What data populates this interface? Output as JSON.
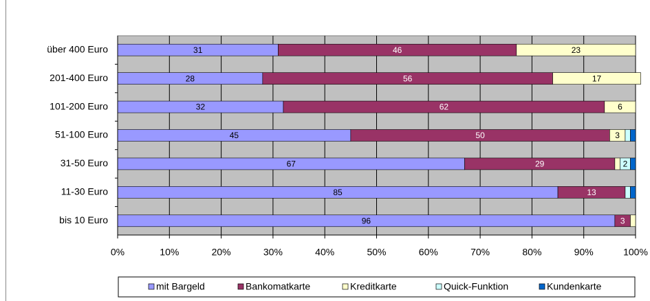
{
  "chart_data": {
    "type": "stacked-bar-horizontal",
    "categories": [
      "über 400 Euro",
      "201-400 Euro",
      "101-200 Euro",
      "51-100 Euro",
      "31-50 Euro",
      "11-30 Euro",
      "bis 10 Euro"
    ],
    "series": [
      {
        "name": "mit Bargeld",
        "color": "#9999ff",
        "values": [
          31,
          28,
          32,
          45,
          67,
          85,
          96
        ]
      },
      {
        "name": "Bankomatkarte",
        "color": "#993366",
        "values": [
          46,
          56,
          62,
          50,
          29,
          13,
          3
        ]
      },
      {
        "name": "Kreditkarte",
        "color": "#ffffcc",
        "values": [
          23,
          17,
          6,
          3,
          1,
          0,
          1
        ]
      },
      {
        "name": "Quick-Funktion",
        "color": "#ccffff",
        "values": [
          0,
          0,
          0,
          1,
          2,
          1,
          0
        ]
      },
      {
        "name": "Kundenkarte",
        "color": "#0066cc",
        "values": [
          0,
          0,
          0,
          1,
          1,
          1,
          0
        ]
      }
    ],
    "xlim": [
      0,
      100
    ],
    "xticks": [
      {
        "value": 0,
        "label": "0%"
      },
      {
        "value": 10,
        "label": "10%"
      },
      {
        "value": 20,
        "label": "20%"
      },
      {
        "value": 30,
        "label": "30%"
      },
      {
        "value": 40,
        "label": "40%"
      },
      {
        "value": 50,
        "label": "50%"
      },
      {
        "value": 60,
        "label": "60%"
      },
      {
        "value": 70,
        "label": "70%"
      },
      {
        "value": 80,
        "label": "80%"
      },
      {
        "value": 90,
        "label": "90%"
      },
      {
        "value": 100,
        "label": "100%"
      }
    ],
    "grid": true,
    "plot_background": "#c0c0c0",
    "legend": "bottom"
  }
}
